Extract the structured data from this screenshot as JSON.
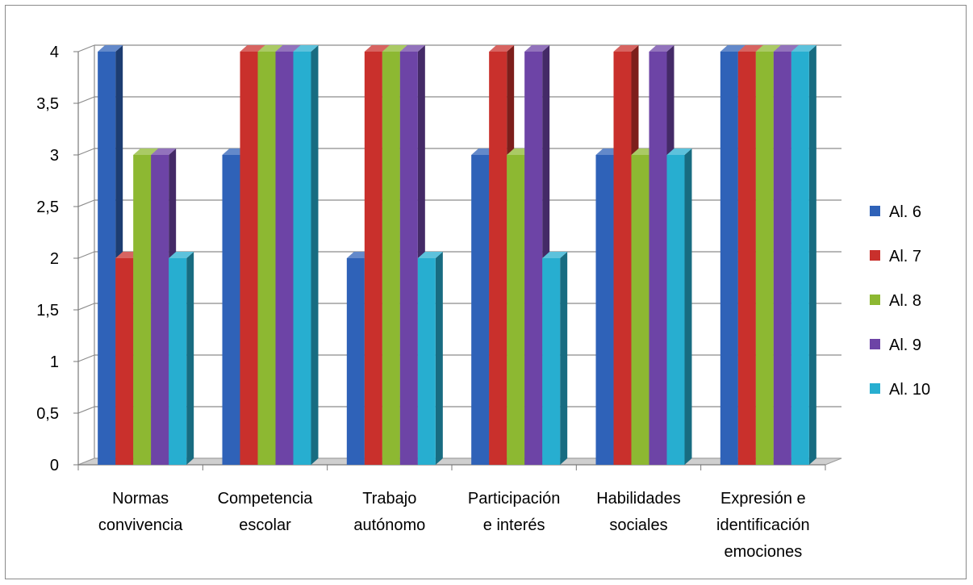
{
  "chart_data": {
    "type": "bar",
    "title": "",
    "xlabel": "",
    "ylabel": "",
    "ylim": [
      0,
      4
    ],
    "y_ticks": [
      "0",
      "0,5",
      "1",
      "1,5",
      "2",
      "2,5",
      "3",
      "3,5",
      "4"
    ],
    "categories": [
      [
        "Normas",
        "convivencia"
      ],
      [
        "Competencia",
        "escolar"
      ],
      [
        "Trabajo",
        "autónomo"
      ],
      [
        "Participación",
        "e interés"
      ],
      [
        "Habilidades",
        "sociales"
      ],
      [
        "Expresión e",
        "identificación",
        "emociones"
      ]
    ],
    "series": [
      {
        "name": "Al. 6",
        "color": "#2F62B8",
        "values": [
          4,
          3,
          2,
          3,
          3,
          4
        ]
      },
      {
        "name": "Al. 7",
        "color": "#C9302C",
        "values": [
          2,
          4,
          4,
          4,
          4,
          4
        ]
      },
      {
        "name": "Al. 8",
        "color": "#8DB832",
        "values": [
          3,
          4,
          4,
          3,
          3,
          4
        ]
      },
      {
        "name": "Al. 9",
        "color": "#6D44A6",
        "values": [
          3,
          4,
          4,
          4,
          4,
          4
        ]
      },
      {
        "name": "Al. 10",
        "color": "#27AED0",
        "values": [
          2,
          4,
          2,
          2,
          3,
          4
        ]
      }
    ],
    "grid": true,
    "legend_position": "right",
    "style": "3d-clustered-column"
  }
}
